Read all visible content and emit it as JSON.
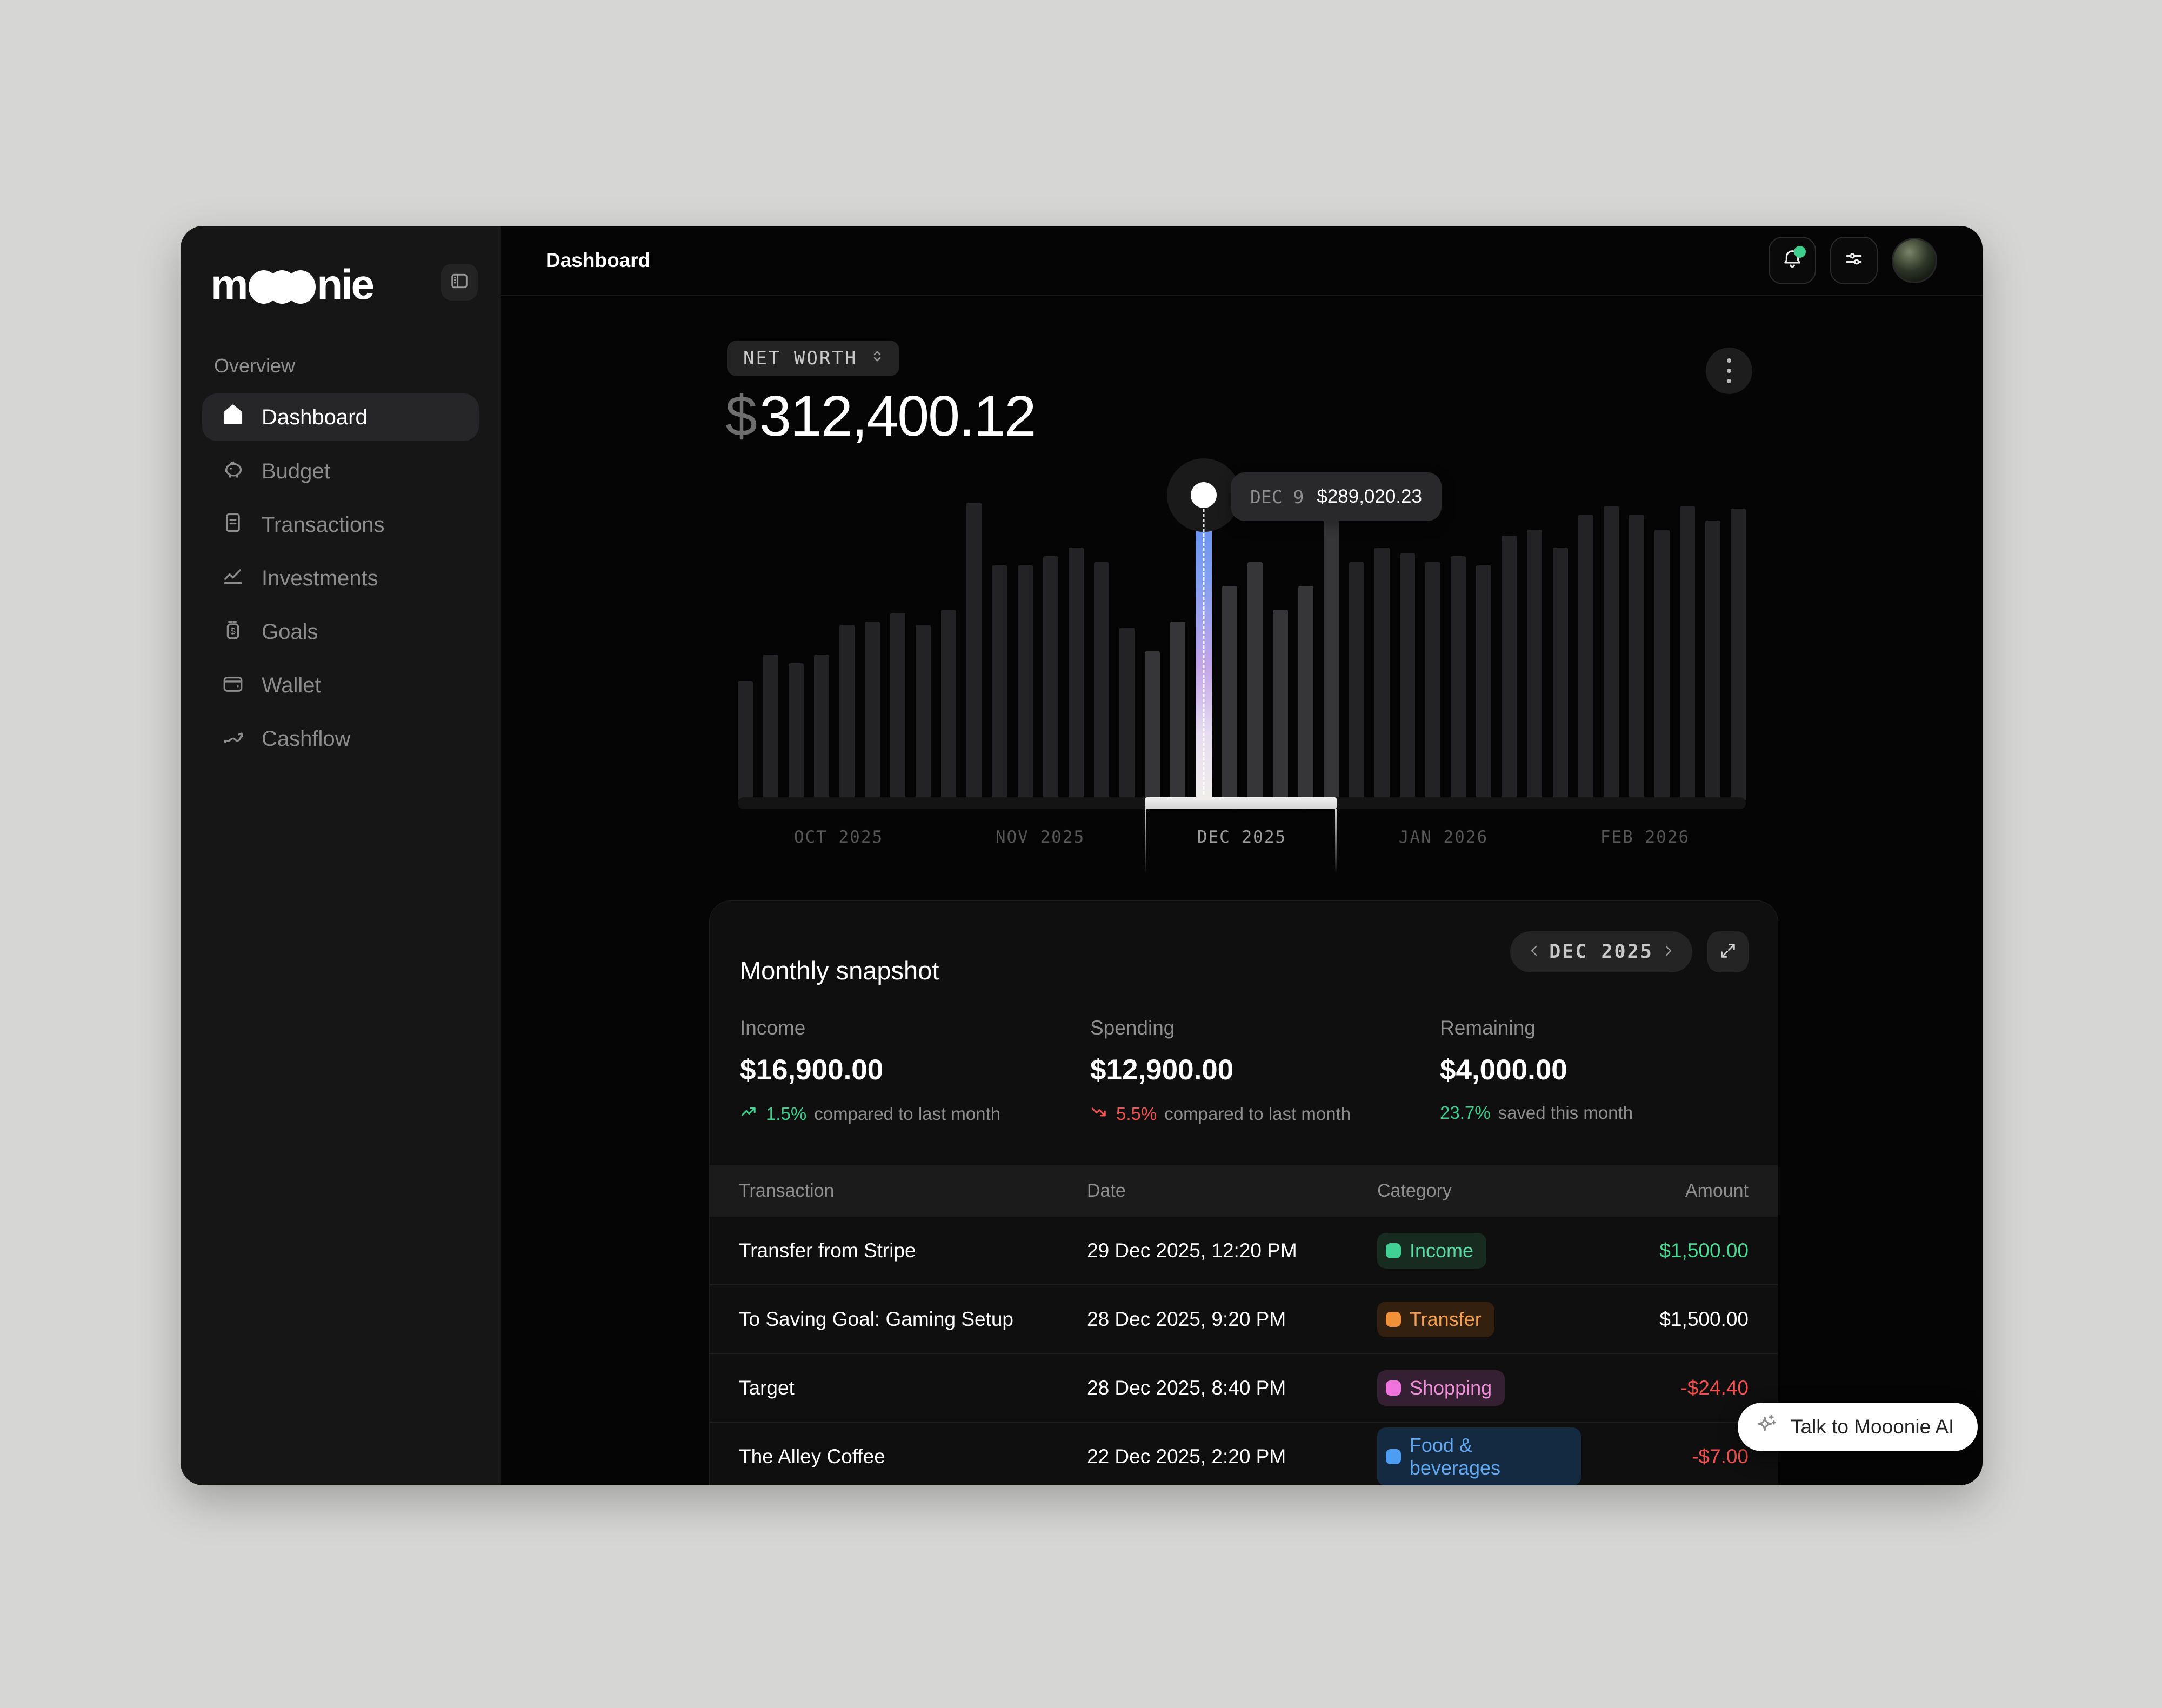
{
  "sidebar": {
    "logo_m": "m",
    "logo_nie": "nie",
    "section_label": "Overview",
    "items": [
      {
        "label": "Dashboard",
        "icon": "home-icon",
        "active": true
      },
      {
        "label": "Budget",
        "icon": "piggy-bank-icon",
        "active": false
      },
      {
        "label": "Transactions",
        "icon": "document-icon",
        "active": false
      },
      {
        "label": "Investments",
        "icon": "line-chart-icon",
        "active": false
      },
      {
        "label": "Goals",
        "icon": "savings-jar-icon",
        "active": false
      },
      {
        "label": "Wallet",
        "icon": "wallet-icon",
        "active": false
      },
      {
        "label": "Cashflow",
        "icon": "cashflow-arrow-icon",
        "active": false
      }
    ]
  },
  "topbar": {
    "title": "Dashboard"
  },
  "networth": {
    "selector_label": "NET WORTH",
    "currency_symbol": "$",
    "amount": "312,400.12"
  },
  "chart_data": {
    "type": "bar",
    "title": "Net worth daily history",
    "x_axis_labels": [
      "OCT 2025",
      "NOV 2025",
      "DEC 2025",
      "JAN 2026",
      "FEB 2026"
    ],
    "selected_month_index": 2,
    "values_relative": [
      0.4,
      0.49,
      0.46,
      0.49,
      0.59,
      0.6,
      0.63,
      0.59,
      0.64,
      1.0,
      0.79,
      0.79,
      0.82,
      0.85,
      0.8,
      0.58,
      0.5,
      0.6,
      1.0,
      0.72,
      0.8,
      0.64,
      0.72,
      1.0,
      0.8,
      0.85,
      0.83,
      0.8,
      0.82,
      0.79,
      0.89,
      0.91,
      0.85,
      0.96,
      0.99,
      0.96,
      0.91,
      0.99,
      0.94,
      0.98
    ],
    "selected_index": 18,
    "highlight_range": [
      16,
      23
    ],
    "selected_point": {
      "label": "DEC 9",
      "value": "$289,020.23"
    },
    "current_value": "$312,400.12",
    "grid": false,
    "legend": false
  },
  "snapshot": {
    "title": "Monthly snapshot",
    "month_label": "DEC 2025",
    "stats": [
      {
        "label": "Income",
        "value": "$16,900.00",
        "pct": "1.5%",
        "note": "compared to last month",
        "trend": "up"
      },
      {
        "label": "Spending",
        "value": "$12,900.00",
        "pct": "5.5%",
        "note": "compared to last month",
        "trend": "down"
      },
      {
        "label": "Remaining",
        "value": "$4,000.00",
        "pct": "23.7%",
        "note": "saved this month",
        "trend": "none"
      }
    ],
    "table": {
      "headers": [
        "Transaction",
        "Date",
        "Category",
        "Amount"
      ],
      "rows": [
        {
          "transaction": "Transfer from Stripe",
          "date": "29 Dec 2025, 12:20 PM",
          "category": "Income",
          "amount": "$1,500.00",
          "amount_color": "green"
        },
        {
          "transaction": "To Saving Goal: Gaming Setup",
          "date": "28 Dec 2025, 9:20 PM",
          "category": "Transfer",
          "amount": "$1,500.00",
          "amount_color": "white"
        },
        {
          "transaction": "Target",
          "date": "28 Dec 2025, 8:40 PM",
          "category": "Shopping",
          "amount": "-$24.40",
          "amount_color": "red"
        },
        {
          "transaction": "The Alley Coffee",
          "date": "22 Dec 2025, 2:20 PM",
          "category": "Food & beverages",
          "amount": "-$7.00",
          "amount_color": "red"
        }
      ]
    },
    "categories": {
      "Income": {
        "bg": "#182b20",
        "swatch": "#41d195",
        "text": "#5bd9a2"
      },
      "Transfer": {
        "bg": "#33200f",
        "swatch": "#f09038",
        "text": "#f5a04c"
      },
      "Shopping": {
        "bg": "#342032",
        "swatch": "#f173de",
        "text": "#ef8fd8"
      },
      "Food & beverages": {
        "bg": "#142a40",
        "swatch": "#4d9df2",
        "text": "#63a9f2"
      }
    }
  },
  "ai_button": {
    "label": "Talk to Mooonie AI"
  },
  "colors": {
    "accent_green": "#3ecf8e",
    "accent_red": "#f0524f",
    "bar_blue": "#5f8ff0",
    "bar_purple": "#c3a5e8",
    "notification_dot": "#3ecf8e"
  }
}
